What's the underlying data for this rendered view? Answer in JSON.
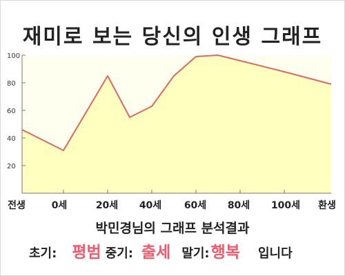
{
  "title": "재미로 보는 당신의 인생 그래프",
  "chart_data": {
    "type": "area",
    "x_labels": [
      "전생",
      "0세",
      "20세",
      "40세",
      "60세",
      "80세",
      "100세",
      "환생"
    ],
    "y_ticks": [
      20,
      40,
      60,
      80,
      100
    ],
    "ylim": [
      0,
      100
    ],
    "grid": false,
    "series": [
      {
        "x": [
          "전생",
          "0세",
          "20세",
          "30세",
          "40세",
          "50세",
          "60세",
          "70세",
          "80세",
          "100세",
          "환생"
        ],
        "values": [
          46,
          31,
          85,
          55,
          63,
          85,
          99,
          100,
          96,
          88,
          79
        ]
      }
    ],
    "colors": {
      "line": "#e06666",
      "fill": "#ffffc0",
      "plot_bg": "#fffff0"
    }
  },
  "summary": {
    "title": "박민경님의 그래프 분석결과",
    "early_label": "초기:",
    "early_value": "평범",
    "mid_label": "중기:",
    "mid_value": "출세",
    "late_label": "말기:",
    "late_value": "행복",
    "ending": "입니다"
  }
}
